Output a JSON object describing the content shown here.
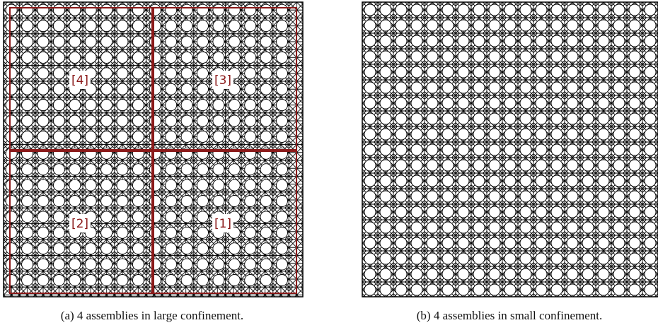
{
  "figure": {
    "panels": [
      {
        "caption": "(a) 4 assemblies in large confinement.",
        "labels": [
          "[4]",
          "[3]",
          "[2]",
          "[1]"
        ]
      },
      {
        "caption": "(b) 4 assemblies in small confinement."
      }
    ]
  }
}
